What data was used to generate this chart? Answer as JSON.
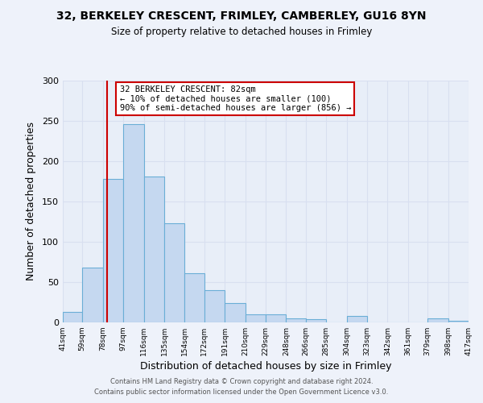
{
  "title": "32, BERKELEY CRESCENT, FRIMLEY, CAMBERLEY, GU16 8YN",
  "subtitle": "Size of property relative to detached houses in Frimley",
  "xlabel": "Distribution of detached houses by size in Frimley",
  "ylabel": "Number of detached properties",
  "bar_color": "#c5d8f0",
  "bar_edge_color": "#6aaed6",
  "bins": [
    41,
    59,
    78,
    97,
    116,
    135,
    154,
    172,
    191,
    210,
    229,
    248,
    266,
    285,
    304,
    323,
    342,
    361,
    379,
    398,
    417
  ],
  "counts": [
    13,
    68,
    178,
    246,
    181,
    123,
    61,
    40,
    24,
    10,
    10,
    5,
    4,
    0,
    8,
    0,
    0,
    0,
    5,
    2
  ],
  "tick_labels": [
    "41sqm",
    "59sqm",
    "78sqm",
    "97sqm",
    "116sqm",
    "135sqm",
    "154sqm",
    "172sqm",
    "191sqm",
    "210sqm",
    "229sqm",
    "248sqm",
    "266sqm",
    "285sqm",
    "304sqm",
    "323sqm",
    "342sqm",
    "361sqm",
    "379sqm",
    "398sqm",
    "417sqm"
  ],
  "vline_x": 82,
  "vline_color": "#cc0000",
  "ylim": [
    0,
    300
  ],
  "yticks": [
    0,
    50,
    100,
    150,
    200,
    250,
    300
  ],
  "annotation_text": "32 BERKELEY CRESCENT: 82sqm\n← 10% of detached houses are smaller (100)\n90% of semi-detached houses are larger (856) →",
  "annotation_box_facecolor": "#ffffff",
  "annotation_box_edgecolor": "#cc0000",
  "footer_line1": "Contains HM Land Registry data © Crown copyright and database right 2024.",
  "footer_line2": "Contains public sector information licensed under the Open Government Licence v3.0.",
  "background_color": "#eef2fa",
  "grid_color": "#d8dff0",
  "plot_bg_color": "#e8eef8"
}
